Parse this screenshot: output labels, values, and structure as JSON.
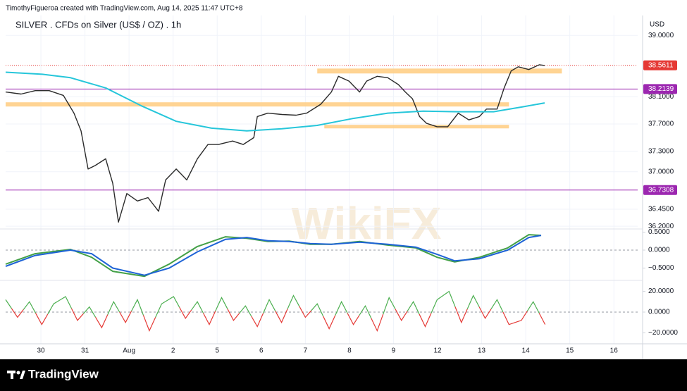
{
  "header": "TimothyFigueroa created with TradingView.com, Aug 14, 2025 11:47 UTC+8",
  "watermark": "WikiFX",
  "brand": "TradingView",
  "chart_data": [
    {
      "type": "line",
      "title": "SILVER . CFDs on Silver (US$ / OZ) . 1h",
      "currency": "USD",
      "xlim": [
        -0.8,
        13.54
      ],
      "xticks": [
        {
          "value": 0,
          "label": "30"
        },
        {
          "value": 1,
          "label": "31"
        },
        {
          "value": 2,
          "label": "Aug"
        },
        {
          "value": 3,
          "label": "2"
        },
        {
          "value": 4,
          "label": "5"
        },
        {
          "value": 5,
          "label": "6"
        },
        {
          "value": 6,
          "label": "7"
        },
        {
          "value": 7,
          "label": "8"
        },
        {
          "value": 8,
          "label": "9"
        },
        {
          "value": 9,
          "label": "12"
        },
        {
          "value": 10,
          "label": "13"
        },
        {
          "value": 11,
          "label": "14"
        },
        {
          "value": 12,
          "label": "15"
        },
        {
          "value": 13,
          "label": "16"
        }
      ],
      "ylim": [
        36.16,
        39.21
      ],
      "yticks": [
        {
          "value": 39,
          "label": "39.0000"
        },
        {
          "value": 38.1,
          "label": "38.1000"
        },
        {
          "value": 37.7,
          "label": "37.7000"
        },
        {
          "value": 37.3,
          "label": "37.3000"
        },
        {
          "value": 37,
          "label": "37.0000"
        },
        {
          "value": 36.45,
          "label": "36.4500"
        },
        {
          "value": 36.2,
          "label": "36.2000"
        }
      ],
      "grid": true,
      "zones": [
        {
          "from": 38.442,
          "to": 38.514,
          "x0": 6.27,
          "x1": 11.82,
          "color": "#ffcc80"
        },
        {
          "from": 37.957,
          "to": 38.019,
          "x0": -0.8,
          "x1": 10.62,
          "color": "#ffcc80"
        },
        {
          "from": 37.636,
          "to": 37.688,
          "x0": 6.43,
          "x1": 10.62,
          "color": "#ffcc80"
        }
      ],
      "levels": [
        {
          "value": 38.5611,
          "color": "#e53935",
          "style": "dotted"
        },
        {
          "value": 38.2139,
          "color": "#9c27b0",
          "style": "solid"
        },
        {
          "value": 36.7308,
          "color": "#9c27b0",
          "style": "solid"
        }
      ],
      "series": [
        {
          "color": "#2b2b2b",
          "x": [
            -0.8,
            -0.45,
            -0.13,
            0.19,
            0.51,
            0.75,
            0.91,
            1.07,
            1.23,
            1.47,
            1.63,
            1.76,
            1.95,
            2.19,
            2.43,
            2.67,
            2.83,
            3.07,
            3.31,
            3.55,
            3.79,
            4.03,
            4.35,
            4.59,
            4.83,
            4.91,
            5.15,
            5.47,
            5.79,
            6.03,
            6.35,
            6.59,
            6.75,
            6.99,
            7.23,
            7.39,
            7.63,
            7.87,
            8.11,
            8.27,
            8.43,
            8.59,
            8.75,
            8.99,
            9.23,
            9.47,
            9.71,
            9.95,
            10.11,
            10.35,
            10.51,
            10.67,
            10.83,
            11.07,
            11.31,
            11.43
          ],
          "values": [
            38.17,
            38.14,
            38.19,
            38.19,
            38.12,
            37.86,
            37.6,
            37.04,
            37.09,
            37.19,
            36.83,
            36.26,
            36.68,
            36.57,
            36.62,
            36.42,
            36.88,
            37.04,
            36.88,
            37.19,
            37.4,
            37.4,
            37.45,
            37.4,
            37.5,
            37.81,
            37.86,
            37.84,
            37.83,
            37.86,
            37.99,
            38.17,
            38.4,
            38.33,
            38.17,
            38.33,
            38.4,
            38.38,
            38.28,
            38.17,
            38.07,
            37.81,
            37.71,
            37.66,
            37.66,
            37.86,
            37.76,
            37.81,
            37.92,
            37.92,
            38.23,
            38.48,
            38.54,
            38.5,
            38.57,
            38.56
          ]
        },
        {
          "color": "#26c6da",
          "x": [
            -0.8,
            0.03,
            0.67,
            1.47,
            2.27,
            3.07,
            3.87,
            4.67,
            5.47,
            6.27,
            7.07,
            7.87,
            8.67,
            9.47,
            10.27,
            10.91,
            11.43
          ],
          "values": [
            38.46,
            38.43,
            38.38,
            38.23,
            37.97,
            37.74,
            37.64,
            37.6,
            37.63,
            37.68,
            37.78,
            37.86,
            37.89,
            37.88,
            37.88,
            37.95,
            38.01
          ]
        }
      ]
    },
    {
      "type": "line",
      "xlim": [
        -0.8,
        13.54
      ],
      "ylim": [
        -0.843,
        0.588
      ],
      "yticks": [
        {
          "value": 0.5,
          "label": "0.5000"
        },
        {
          "value": 0,
          "label": "0.0000"
        },
        {
          "value": -0.5,
          "label": "−0.5000"
        }
      ],
      "zero_line": true,
      "series": [
        {
          "color": "#43a047",
          "x": [
            -0.8,
            -0.13,
            0.67,
            1.15,
            1.63,
            2.35,
            2.91,
            3.55,
            4.19,
            4.67,
            5.15,
            5.63,
            6.11,
            6.59,
            7.23,
            7.87,
            8.51,
            8.99,
            9.39,
            9.95,
            10.59,
            11.07,
            11.35
          ],
          "values": [
            -0.39,
            -0.1,
            0.02,
            -0.2,
            -0.59,
            -0.73,
            -0.39,
            0.1,
            0.37,
            0.33,
            0.24,
            0.25,
            0.16,
            0.16,
            0.24,
            0.14,
            0.06,
            -0.2,
            -0.33,
            -0.2,
            0.06,
            0.43,
            0.41
          ]
        },
        {
          "color": "#1e63d6",
          "x": [
            -0.8,
            -0.13,
            0.67,
            1.15,
            1.63,
            2.35,
            2.91,
            3.55,
            4.19,
            4.67,
            5.15,
            5.63,
            6.11,
            6.59,
            7.23,
            7.87,
            8.51,
            8.99,
            9.39,
            9.95,
            10.59,
            11.07,
            11.35
          ],
          "values": [
            -0.45,
            -0.15,
            0.0,
            -0.1,
            -0.5,
            -0.7,
            -0.5,
            -0.05,
            0.3,
            0.35,
            0.26,
            0.24,
            0.18,
            0.16,
            0.22,
            0.16,
            0.08,
            -0.12,
            -0.3,
            -0.24,
            0.0,
            0.35,
            0.41
          ]
        }
      ]
    },
    {
      "type": "line",
      "xlim": [
        -0.8,
        13.54
      ],
      "ylim": [
        -30.6,
        30.6
      ],
      "yticks": [
        {
          "value": 20,
          "label": "20.0000"
        },
        {
          "value": 0,
          "label": "0.0000"
        },
        {
          "value": -20,
          "label": "−20.0000"
        }
      ],
      "zero_line": true,
      "series": [
        {
          "color": "#4caf50",
          "down_color": "#e53935",
          "x": [
            -0.8,
            -0.53,
            -0.26,
            0.02,
            0.29,
            0.56,
            0.83,
            1.1,
            1.38,
            1.65,
            1.92,
            2.19,
            2.46,
            2.74,
            3.01,
            3.28,
            3.55,
            3.82,
            4.1,
            4.37,
            4.64,
            4.91,
            5.18,
            5.46,
            5.73,
            6.0,
            6.27,
            6.54,
            6.82,
            7.09,
            7.36,
            7.63,
            7.9,
            8.18,
            8.45,
            8.72,
            8.99,
            9.26,
            9.54,
            9.81,
            10.08,
            10.35,
            10.62,
            10.9,
            11.17,
            11.44
          ],
          "values": [
            12,
            -5,
            10,
            -12,
            8,
            15,
            -8,
            5,
            -15,
            10,
            -10,
            12,
            -18,
            8,
            15,
            -6,
            10,
            -12,
            14,
            -8,
            6,
            -14,
            12,
            -10,
            16,
            -5,
            8,
            -16,
            10,
            -12,
            6,
            -18,
            14,
            -8,
            10,
            -14,
            12,
            20,
            -10,
            16,
            -6,
            12,
            -12,
            -8,
            10,
            -12
          ]
        }
      ]
    }
  ]
}
